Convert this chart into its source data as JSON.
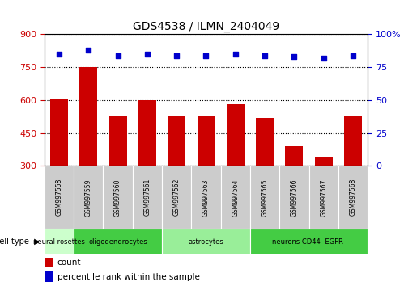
{
  "title": "GDS4538 / ILMN_2404049",
  "samples": [
    "GSM997558",
    "GSM997559",
    "GSM997560",
    "GSM997561",
    "GSM997562",
    "GSM997563",
    "GSM997564",
    "GSM997565",
    "GSM997566",
    "GSM997567",
    "GSM997568"
  ],
  "counts": [
    605,
    750,
    530,
    600,
    525,
    530,
    580,
    520,
    390,
    340,
    530
  ],
  "percentile_ranks": [
    85,
    88,
    84,
    85,
    84,
    84,
    85,
    84,
    83,
    82,
    84
  ],
  "cell_types": [
    {
      "label": "neural rosettes",
      "start": 0,
      "end": 1,
      "color": "#ccffcc"
    },
    {
      "label": "oligodendrocytes",
      "start": 1,
      "end": 4,
      "color": "#44cc44"
    },
    {
      "label": "astrocytes",
      "start": 4,
      "end": 7,
      "color": "#99ee99"
    },
    {
      "label": "neurons CD44- EGFR-",
      "start": 7,
      "end": 11,
      "color": "#44cc44"
    }
  ],
  "ylim_left": [
    300,
    900
  ],
  "ylim_right": [
    0,
    100
  ],
  "yticks_left": [
    300,
    450,
    600,
    750,
    900
  ],
  "yticks_right": [
    0,
    25,
    50,
    75,
    100
  ],
  "bar_color": "#cc0000",
  "dot_color": "#0000cc",
  "grid_color": "#000000",
  "bg_plot": "#ffffff",
  "left_axis_color": "#cc0000",
  "right_axis_color": "#0000cc",
  "tick_label_bg": "#cccccc"
}
